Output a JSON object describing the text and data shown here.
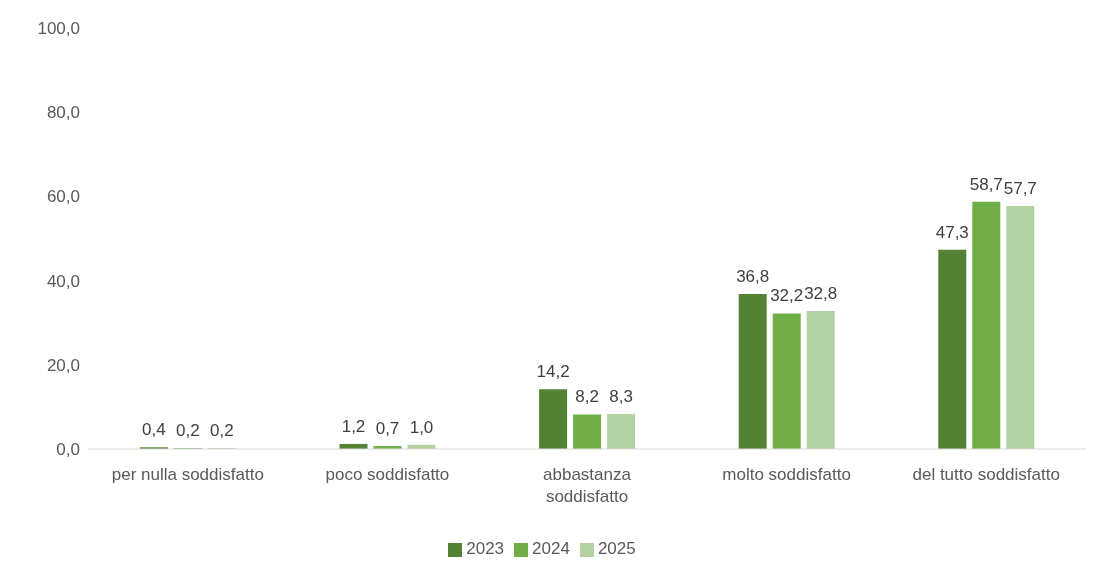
{
  "chart_data": {
    "type": "bar",
    "categories": [
      "per nulla soddisfatto",
      "poco soddisfatto",
      "abbastanza soddisfatto",
      "molto soddisfatto",
      "del tutto soddisfatto"
    ],
    "series": [
      {
        "name": "2023",
        "color": "#548235",
        "values": [
          0.4,
          1.2,
          14.2,
          36.8,
          47.3
        ],
        "value_labels": [
          "0,4",
          "1,2",
          "14,2",
          "36,8",
          "47,3"
        ]
      },
      {
        "name": "2024",
        "color": "#70ad47",
        "values": [
          0.2,
          0.7,
          8.2,
          32.2,
          58.7
        ],
        "value_labels": [
          "0,2",
          "0,7",
          "8,2",
          "32,2",
          "58,7"
        ]
      },
      {
        "name": "2025",
        "color": "#b3d1a3",
        "values": [
          0.2,
          1.0,
          8.3,
          32.8,
          57.7
        ],
        "value_labels": [
          "0,2",
          "1,0",
          "8,3",
          "32,8",
          "57,7"
        ]
      }
    ],
    "ylim": [
      0,
      100
    ],
    "yticks": [
      {
        "value": 0,
        "label": "0,0"
      },
      {
        "value": 20,
        "label": "20,0"
      },
      {
        "value": 40,
        "label": "40,0"
      },
      {
        "value": 60,
        "label": "60,0"
      },
      {
        "value": 80,
        "label": "80,0"
      },
      {
        "value": 100,
        "label": "100,0"
      }
    ],
    "legend": "bottom"
  }
}
